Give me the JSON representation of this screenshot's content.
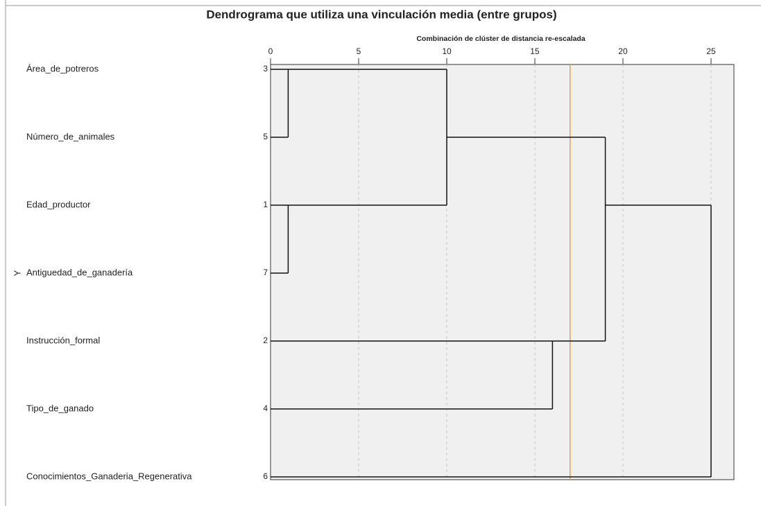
{
  "chart_data": {
    "type": "dendrogram",
    "title": "Dendrograma que utiliza una vinculación media (entre grupos)",
    "xlabel": "Combinación de clúster de distancia re-escalada",
    "ylabel": "Y",
    "leaves": [
      {
        "label": "Área_de_potreros",
        "case": 3
      },
      {
        "label": "Número_de_animales",
        "case": 5
      },
      {
        "label": "Edad_productor",
        "case": 1
      },
      {
        "label": "Antiguedad_de_ganadería",
        "case": 7
      },
      {
        "label": "Instrucción_formal",
        "case": 2
      },
      {
        "label": "Tipo_de_ganado",
        "case": 4
      },
      {
        "label": "Conocimientos_Ganaderia_Regenerativa",
        "case": 6
      }
    ],
    "merges": [
      {
        "clusters": [
          3,
          5
        ],
        "distance": 1
      },
      {
        "clusters": [
          1,
          7
        ],
        "distance": 1
      },
      {
        "clusters": [
          3,
          1
        ],
        "distance": 10
      },
      {
        "clusters": [
          2,
          4
        ],
        "distance": 16
      },
      {
        "clusters": [
          3,
          2
        ],
        "distance": 19
      },
      {
        "clusters": [
          3,
          6
        ],
        "distance": 25
      }
    ],
    "xlim": [
      0,
      26.3
    ],
    "xticks": [
      0,
      5,
      10,
      15,
      20,
      25
    ],
    "grid": true,
    "cutoff": 17,
    "cutoff_color": "#f0a030",
    "line_color": "#111111",
    "background": "#f0f0f0"
  }
}
